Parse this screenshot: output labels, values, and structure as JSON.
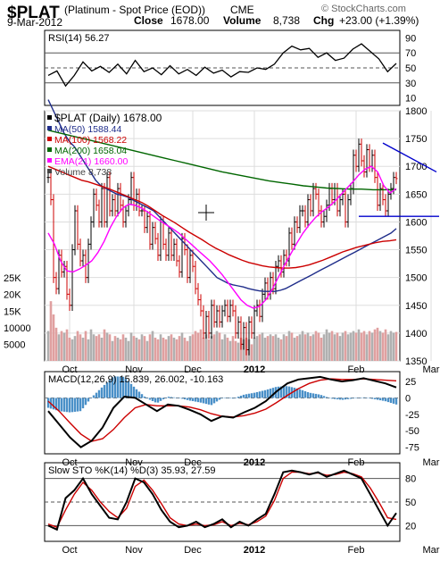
{
  "header": {
    "symbol": "$PLAT",
    "name": "(Platinum  - Spot Price (EOD))",
    "exchange": "CME",
    "date": "9-Mar-2012",
    "close_label": "Close",
    "close": "1678.00",
    "volume_label": "Volume",
    "volume": "8,738",
    "chg_label": "Chg",
    "chg": "+23.00 (+1.39%)",
    "watermark": "© StockCharts.com"
  },
  "colors": {
    "up": "#000000",
    "down": "#cc0000",
    "ma50": "#1f2d8a",
    "ma100": "#cc0000",
    "ma200": "#006600",
    "ema21": "#ff00ff",
    "volume_up": "#b0b0b0",
    "volume_down": "#e0a0a0",
    "macd_hist": "#4a90c8",
    "trendline": "#0000cc",
    "grid": "#dddddd"
  },
  "chart_data": [
    {
      "type": "line",
      "panel": "rsi",
      "legend": "RSI(14) 56.27",
      "ylim": [
        0,
        100
      ],
      "y_ticks": [
        10,
        30,
        50,
        70,
        90
      ],
      "ref_lines": [
        30,
        50,
        70
      ],
      "x": [
        0,
        4,
        8,
        12,
        16,
        20,
        24,
        28,
        32,
        36,
        40,
        44,
        48,
        52,
        56,
        60,
        64,
        68,
        72,
        76,
        80,
        84,
        88,
        92,
        96,
        100,
        104,
        108,
        112,
        116,
        120,
        124,
        128,
        132,
        136,
        140,
        144,
        148,
        152,
        156,
        160
      ],
      "values": [
        40,
        46,
        26,
        40,
        58,
        46,
        52,
        44,
        55,
        42,
        60,
        45,
        50,
        41,
        53,
        42,
        48,
        40,
        51,
        43,
        47,
        38,
        45,
        44,
        50,
        48,
        55,
        70,
        79,
        74,
        76,
        64,
        70,
        60,
        63,
        75,
        82,
        72,
        62,
        45,
        56
      ]
    },
    {
      "type": "candlestick",
      "panel": "price",
      "legend": "$PLAT (Daily) 1678.00",
      "ylim": [
        1350,
        1800
      ],
      "y_ticks": [
        1350,
        1400,
        1450,
        1500,
        1550,
        1600,
        1650,
        1700,
        1750,
        1800
      ],
      "x_labels": [
        {
          "i": 8,
          "label": "Oct"
        },
        {
          "i": 32,
          "label": "Nov"
        },
        {
          "i": 54,
          "label": "Dec"
        },
        {
          "i": 77,
          "label": "2012"
        },
        {
          "i": 115,
          "label": "Feb"
        },
        {
          "i": 143,
          "label": "Mar"
        }
      ],
      "close": [
        1680,
        1640,
        1500,
        1480,
        1540,
        1510,
        1520,
        1470,
        1450,
        1550,
        1620,
        1560,
        1530,
        1540,
        1500,
        1560,
        1600,
        1650,
        1630,
        1600,
        1660,
        1600,
        1680,
        1620,
        1640,
        1620,
        1660,
        1630,
        1600,
        1620,
        1640,
        1680,
        1630,
        1650,
        1620,
        1620,
        1590,
        1610,
        1560,
        1590,
        1570,
        1540,
        1600,
        1560,
        1540,
        1580,
        1540,
        1560,
        1530,
        1510,
        1570,
        1550,
        1500,
        1540,
        1520,
        1480,
        1460,
        1440,
        1400,
        1430,
        1400,
        1450,
        1420,
        1440,
        1420,
        1440,
        1450,
        1430,
        1450,
        1440,
        1400,
        1420,
        1380,
        1410,
        1370,
        1420,
        1400,
        1440,
        1450,
        1430,
        1470,
        1490,
        1470,
        1500,
        1480,
        1520,
        1530,
        1510,
        1540,
        1530,
        1580,
        1560,
        1600,
        1590,
        1620,
        1620,
        1600,
        1640,
        1620,
        1660,
        1650,
        1620,
        1600,
        1610,
        1630,
        1660,
        1640,
        1660,
        1620,
        1640,
        1650,
        1600,
        1640,
        1660,
        1720,
        1700,
        1740,
        1710,
        1690,
        1730,
        1700,
        1720,
        1680,
        1630,
        1660,
        1640,
        1620,
        1650,
        1660,
        1680,
        1678
      ],
      "series": [
        {
          "name": "MA(50) 1588.44",
          "values": [
            1820,
            1800,
            1780,
            1760,
            1745,
            1735,
            1720,
            1705,
            1690,
            1675,
            1665,
            1660,
            1655,
            1650,
            1648,
            1645,
            1640,
            1635,
            1630,
            1625,
            1620,
            1610,
            1600,
            1590,
            1580,
            1570,
            1560,
            1550,
            1540,
            1530,
            1520,
            1510,
            1500,
            1495,
            1490,
            1487,
            1485,
            1483,
            1480,
            1478,
            1476,
            1475,
            1475,
            1475,
            1477,
            1480,
            1485,
            1490,
            1495,
            1500,
            1505,
            1510,
            1515,
            1520,
            1525,
            1530,
            1535,
            1540,
            1545,
            1550,
            1555,
            1560,
            1565,
            1570,
            1575,
            1580,
            1588
          ]
        },
        {
          "name": "MA(100) 1568.22",
          "values": [
            1700,
            1695,
            1690,
            1685,
            1680,
            1675,
            1672,
            1668,
            1664,
            1660,
            1655,
            1650,
            1645,
            1640,
            1635,
            1628,
            1620,
            1612,
            1605,
            1598,
            1590,
            1582,
            1575,
            1568,
            1560,
            1553,
            1547,
            1541,
            1536,
            1531,
            1527,
            1524,
            1521,
            1519,
            1518,
            1517,
            1517,
            1518,
            1520,
            1523,
            1527,
            1531,
            1536,
            1541,
            1546,
            1550,
            1554,
            1557,
            1560,
            1563,
            1565,
            1566,
            1568
          ]
        },
        {
          "name": "MA(200) 1658.04",
          "values": [
            1765,
            1760,
            1755,
            1750,
            1745,
            1740,
            1735,
            1730,
            1725,
            1720,
            1715,
            1710,
            1705,
            1700,
            1695,
            1690,
            1686,
            1682,
            1678,
            1674,
            1671,
            1668,
            1665,
            1663,
            1661,
            1660,
            1659,
            1659,
            1658,
            1658,
            1658
          ]
        },
        {
          "name": "EMA(21) 1660.00",
          "values": [
            1580,
            1560,
            1530,
            1512,
            1510,
            1515,
            1522,
            1530,
            1545,
            1565,
            1590,
            1610,
            1625,
            1632,
            1630,
            1625,
            1618,
            1610,
            1602,
            1595,
            1588,
            1580,
            1570,
            1560,
            1550,
            1540,
            1530,
            1518,
            1505,
            1490,
            1475,
            1460,
            1450,
            1445,
            1448,
            1460,
            1478,
            1500,
            1522,
            1542,
            1562,
            1580,
            1595,
            1608,
            1618,
            1626,
            1636,
            1648,
            1660,
            1672,
            1685,
            1695,
            1700,
            1690,
            1665,
            1652,
            1660
          ]
        }
      ]
    },
    {
      "type": "bar",
      "panel": "volume",
      "legend": "Volume 8,738",
      "y_ticks": [
        5000,
        10000,
        15000,
        20000,
        25000
      ],
      "y_tick_labels": [
        "5000",
        "10000",
        "15K",
        "20K",
        "25K"
      ],
      "values": [
        9000,
        18000,
        14000,
        10000,
        8000,
        9000,
        8500,
        9500,
        7000,
        6500,
        7500,
        9000,
        8000,
        7000,
        9000,
        6500,
        9500,
        8000,
        7500,
        8000,
        7000,
        9500,
        8500,
        8000,
        6000,
        7500,
        7000,
        6500,
        8000,
        7000,
        6000,
        8500,
        7500,
        7000,
        6500,
        8000,
        7500,
        6000,
        8000,
        9000,
        7000,
        6500,
        8000,
        7000,
        6500,
        7500,
        8000,
        7000,
        6500,
        7500,
        8500,
        7000,
        6000,
        7500,
        8000,
        9000,
        8500,
        9500,
        7000,
        8000,
        6500,
        7500,
        8000,
        9000,
        8500,
        6500,
        8000,
        7000,
        6000,
        7500,
        6000,
        5500,
        7000,
        6500,
        7000,
        6500,
        5000,
        7000,
        7500,
        8000,
        8500,
        7000,
        7500,
        8000,
        7500,
        8000,
        7000,
        6500,
        8000,
        7500,
        9000,
        8500,
        7000,
        7500,
        8000,
        9000,
        8000,
        8500,
        7500,
        8000,
        9000,
        8500,
        7000,
        8000,
        9500,
        8500,
        9000,
        8000,
        8500,
        7500,
        8500,
        9000,
        8000,
        8500,
        9000,
        8500,
        9500,
        8500,
        9000,
        8000,
        9000,
        8500,
        9500,
        10000,
        9000,
        8500,
        9500,
        8000,
        9000,
        8500,
        8738
      ]
    },
    {
      "type": "line",
      "panel": "macd",
      "legend": "MACD(12,26,9) 15.839, 26.002, -10.163",
      "ylim": [
        -85,
        40
      ],
      "y_ticks": [
        -75,
        -50,
        -25,
        0,
        25
      ],
      "x": [
        0,
        5,
        10,
        15,
        20,
        25,
        30,
        35,
        40,
        45,
        50,
        55,
        60,
        65,
        70,
        75,
        80,
        85,
        90,
        95,
        100,
        105,
        110,
        115,
        120,
        125,
        130,
        135,
        140,
        145,
        150,
        155,
        160
      ],
      "series": [
        {
          "name": "MACD",
          "values": [
            -20,
            -40,
            -60,
            -75,
            -65,
            -45,
            -15,
            2,
            0,
            -10,
            -20,
            -10,
            -12,
            -18,
            -25,
            -35,
            -28,
            -30,
            -22,
            -15,
            -5,
            10,
            22,
            28,
            30,
            32,
            28,
            25,
            27,
            30,
            26,
            22,
            16
          ]
        },
        {
          "name": "Signal",
          "values": [
            -5,
            -20,
            -38,
            -55,
            -66,
            -62,
            -48,
            -30,
            -15,
            -10,
            -12,
            -12,
            -12,
            -14,
            -18,
            -24,
            -28,
            -29,
            -27,
            -23,
            -17,
            -7,
            4,
            14,
            22,
            27,
            29,
            28,
            28,
            29,
            28,
            27,
            26
          ]
        }
      ],
      "histogram": [
        -15,
        -20,
        -22,
        -20,
        1,
        17,
        33,
        32,
        15,
        0,
        -8,
        2,
        0,
        -4,
        -7,
        -11,
        0,
        -1,
        5,
        8,
        12,
        17,
        18,
        14,
        8,
        5,
        -1,
        -3,
        -1,
        1,
        -2,
        -5,
        -10
      ]
    },
    {
      "type": "line",
      "panel": "sto",
      "legend": "Slow STO %K(14) %D(3) 35.93, 27.59",
      "ylim": [
        0,
        100
      ],
      "y_ticks": [
        20,
        50,
        80
      ],
      "x": [
        0,
        4,
        8,
        12,
        16,
        20,
        24,
        28,
        32,
        36,
        40,
        44,
        48,
        52,
        56,
        60,
        64,
        68,
        72,
        76,
        80,
        84,
        88,
        92,
        96,
        100,
        104,
        108,
        112,
        116,
        120,
        124,
        128,
        132,
        136,
        140,
        144,
        148,
        152,
        156,
        160
      ],
      "series": [
        {
          "name": "%K",
          "values": [
            20,
            15,
            55,
            65,
            80,
            60,
            45,
            30,
            28,
            50,
            80,
            75,
            60,
            40,
            25,
            18,
            20,
            25,
            18,
            22,
            28,
            18,
            25,
            20,
            28,
            35,
            60,
            88,
            90,
            88,
            85,
            88,
            82,
            86,
            90,
            85,
            80,
            60,
            40,
            20,
            36
          ]
        },
        {
          "name": "%D",
          "values": [
            22,
            18,
            40,
            60,
            75,
            65,
            50,
            38,
            30,
            42,
            70,
            78,
            65,
            48,
            30,
            22,
            20,
            22,
            20,
            21,
            25,
            20,
            23,
            21,
            25,
            32,
            52,
            80,
            88,
            88,
            86,
            87,
            84,
            85,
            88,
            86,
            82,
            68,
            50,
            30,
            28
          ]
        }
      ]
    }
  ]
}
